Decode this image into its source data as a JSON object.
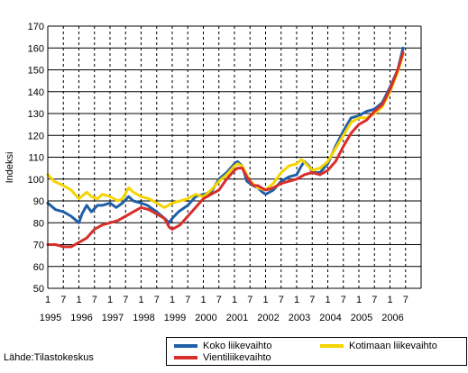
{
  "chart_data": {
    "type": "line",
    "ylabel": "Indeksi",
    "xlabel": "",
    "ylim": [
      50,
      170
    ],
    "yticks": [
      50,
      60,
      70,
      80,
      90,
      100,
      110,
      120,
      130,
      140,
      150,
      160,
      170
    ],
    "month_tick_labels": [
      "1",
      "7",
      "1",
      "7",
      "1",
      "7",
      "1",
      "7",
      "1",
      "7",
      "1",
      "7",
      "1",
      "7",
      "1",
      "7",
      "1",
      "7",
      "1",
      "7",
      "1",
      "7",
      "1",
      "7"
    ],
    "year_labels": [
      "1995",
      "1996",
      "1997",
      "1998",
      "1999",
      "2000",
      "2001",
      "2002",
      "2003",
      "2004",
      "2005",
      "2006"
    ],
    "grid": "vertical dashed lines every 6 months, horizontal solid lines every 10",
    "legend_position": "bottom-right",
    "series": [
      {
        "name": "Koko liikevaihto",
        "color": "#1f5fa8",
        "x": [
          1995.0,
          1995.25,
          1995.5,
          1995.75,
          1996.0,
          1996.1,
          1996.25,
          1996.4,
          1996.6,
          1996.75,
          1997.0,
          1997.2,
          1997.4,
          1997.6,
          1997.75,
          1998.0,
          1998.2,
          1998.5,
          1998.75,
          1998.9,
          1999.0,
          1999.2,
          1999.5,
          1999.75,
          2000.0,
          2000.25,
          2000.5,
          2000.75,
          2001.0,
          2001.1,
          2001.25,
          2001.4,
          2001.6,
          2001.75,
          2001.9,
          2002.0,
          2002.25,
          2002.5,
          2002.75,
          2003.0,
          2003.15,
          2003.25,
          2003.4,
          2003.5,
          2003.75,
          2004.0,
          2004.25,
          2004.5,
          2004.75,
          2005.0,
          2005.25,
          2005.5,
          2005.75,
          2006.0,
          2006.25,
          2006.42
        ],
        "values": [
          89,
          86,
          85,
          83,
          80,
          84,
          88,
          85,
          88,
          88,
          89,
          87,
          89,
          92,
          90,
          89,
          88,
          85,
          82,
          80,
          82,
          85,
          88,
          92,
          93,
          94,
          100,
          103,
          107,
          108,
          106,
          99,
          97,
          96,
          94,
          93,
          95,
          99,
          101,
          102,
          106,
          108,
          106,
          103,
          103,
          107,
          115,
          122,
          128,
          129,
          131,
          132,
          135,
          142,
          150,
          160
        ]
      },
      {
        "name": "Kotimaan liikevaihto",
        "color": "#f5d400",
        "x": [
          1995.0,
          1995.2,
          1995.5,
          1995.75,
          1996.0,
          1996.25,
          1996.4,
          1996.6,
          1996.75,
          1997.0,
          1997.25,
          1997.4,
          1997.6,
          1997.75,
          1998.0,
          1998.25,
          1998.5,
          1998.75,
          1999.0,
          1999.25,
          1999.5,
          1999.75,
          2000.0,
          2000.25,
          2000.5,
          2000.75,
          2001.0,
          2001.1,
          2001.25,
          2001.5,
          2001.75,
          2002.0,
          2002.25,
          2002.5,
          2002.75,
          2003.0,
          2003.15,
          2003.3,
          2003.5,
          2003.75,
          2004.0,
          2004.25,
          2004.5,
          2004.75,
          2005.0,
          2005.25,
          2005.5,
          2005.75,
          2006.0,
          2006.25,
          2006.42
        ],
        "values": [
          102,
          99,
          97,
          95,
          91,
          94,
          92,
          91,
          93,
          92,
          90,
          91,
          96,
          94,
          92,
          91,
          89,
          87,
          89,
          90,
          91,
          93,
          92,
          95,
          99,
          102,
          106,
          107,
          106,
          99,
          96,
          95,
          98,
          103,
          106,
          107,
          109,
          107,
          104,
          105,
          108,
          114,
          120,
          126,
          128,
          128,
          130,
          133,
          140,
          149,
          157
        ]
      },
      {
        "name": "Vientiliikevaihto",
        "color": "#d72f2a",
        "x": [
          1995.0,
          1995.25,
          1995.5,
          1995.75,
          1996.0,
          1996.25,
          1996.5,
          1996.75,
          1997.0,
          1997.25,
          1997.5,
          1997.75,
          1998.0,
          1998.25,
          1998.5,
          1998.75,
          1998.9,
          1999.0,
          1999.25,
          1999.5,
          1999.75,
          2000.0,
          2000.25,
          2000.5,
          2000.75,
          2001.0,
          2001.1,
          2001.25,
          2001.4,
          2001.6,
          2001.75,
          2002.0,
          2002.25,
          2002.5,
          2002.75,
          2003.0,
          2003.25,
          2003.5,
          2003.75,
          2004.0,
          2004.25,
          2004.5,
          2004.75,
          2005.0,
          2005.25,
          2005.5,
          2005.75,
          2006.0,
          2006.25,
          2006.42
        ],
        "values": [
          70,
          70,
          69,
          69,
          71,
          73,
          77,
          79,
          80,
          81,
          83,
          85,
          87,
          86,
          84,
          82,
          78,
          77,
          79,
          83,
          87,
          91,
          93,
          95,
          100,
          104,
          105,
          105,
          101,
          97,
          97,
          95,
          96,
          98,
          99,
          100,
          102,
          103,
          102,
          104,
          108,
          115,
          121,
          125,
          127,
          131,
          134,
          141,
          150,
          158
        ]
      }
    ]
  },
  "source_text": "Lähde:Tilastokeskus",
  "legend": {
    "items": [
      {
        "label": "Koko liikevaihto",
        "color": "#1f5fa8"
      },
      {
        "label": "Kotimaan liikevaihto",
        "color": "#f5d400"
      },
      {
        "label": "Vientiliikevaihto",
        "color": "#d72f2a"
      }
    ]
  }
}
